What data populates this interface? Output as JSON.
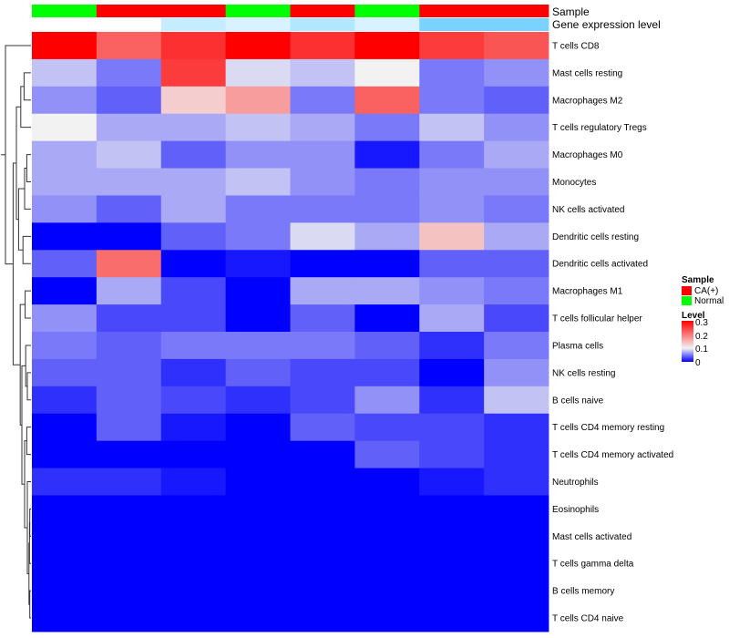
{
  "chart_data": {
    "type": "heatmap",
    "annotation_titles": [
      "Sample",
      "Gene expression level"
    ],
    "sample_groups": [
      "Normal",
      "CA(+)",
      "CA(+)",
      "Normal",
      "CA(+)",
      "Normal",
      "CA(+)",
      "CA(+)"
    ],
    "expression_level": [
      0.08,
      0.08,
      0.05,
      0.06,
      0.04,
      0.06,
      0.01,
      0.01
    ],
    "rows": [
      "T cells CD8",
      "Mast cells resting",
      "Macrophages M2",
      "T cells regulatory  Tregs",
      "Macrophages M0",
      "Monocytes",
      "NK cells activated",
      "Dendritic cells resting",
      "Dendritic cells activated",
      "Macrophages M1",
      "T cells follicular helper",
      "Plasma cells",
      "NK cells resting",
      "B cells naive",
      "T cells CD4 memory resting",
      "T cells CD4 memory activated",
      "Neutrophils",
      "Eosinophils",
      "Mast cells activated",
      "T cells gamma delta",
      "B cells memory",
      "T cells CD4 naive"
    ],
    "values": [
      [
        0.3,
        0.22,
        0.26,
        0.3,
        0.26,
        0.3,
        0.25,
        0.23
      ],
      [
        0.08,
        0.05,
        0.25,
        0.09,
        0.08,
        0.1,
        0.05,
        0.06
      ],
      [
        0.06,
        0.04,
        0.13,
        0.17,
        0.05,
        0.22,
        0.05,
        0.04
      ],
      [
        0.1,
        0.07,
        0.07,
        0.08,
        0.07,
        0.05,
        0.08,
        0.06
      ],
      [
        0.07,
        0.08,
        0.04,
        0.06,
        0.06,
        0.01,
        0.05,
        0.07
      ],
      [
        0.07,
        0.07,
        0.07,
        0.08,
        0.06,
        0.05,
        0.06,
        0.06
      ],
      [
        0.06,
        0.04,
        0.07,
        0.05,
        0.05,
        0.05,
        0.06,
        0.05
      ],
      [
        0.0,
        0.0,
        0.04,
        0.05,
        0.09,
        0.07,
        0.14,
        0.07
      ],
      [
        0.04,
        0.21,
        0.0,
        0.01,
        0.0,
        0.0,
        0.04,
        0.04
      ],
      [
        0.0,
        0.07,
        0.03,
        0.0,
        0.07,
        0.07,
        0.06,
        0.05
      ],
      [
        0.06,
        0.03,
        0.03,
        0.0,
        0.04,
        0.0,
        0.07,
        0.03
      ],
      [
        0.05,
        0.04,
        0.05,
        0.05,
        0.05,
        0.04,
        0.02,
        0.05
      ],
      [
        0.04,
        0.04,
        0.02,
        0.04,
        0.03,
        0.03,
        0.0,
        0.06
      ],
      [
        0.02,
        0.04,
        0.03,
        0.02,
        0.03,
        0.06,
        0.02,
        0.08
      ],
      [
        0.0,
        0.04,
        0.01,
        0.0,
        0.04,
        0.03,
        0.03,
        0.02
      ],
      [
        0.0,
        0.0,
        0.0,
        0.0,
        0.0,
        0.04,
        0.03,
        0.02
      ],
      [
        0.02,
        0.02,
        0.01,
        0.0,
        0.0,
        0.0,
        0.01,
        0.02
      ],
      [
        0,
        0,
        0,
        0,
        0,
        0,
        0,
        0
      ],
      [
        0,
        0,
        0,
        0,
        0,
        0,
        0,
        0
      ],
      [
        0,
        0,
        0,
        0,
        0,
        0,
        0,
        0
      ],
      [
        0,
        0,
        0,
        0,
        0,
        0,
        0,
        0
      ],
      [
        0,
        0,
        0,
        0,
        0,
        0,
        0,
        0
      ]
    ],
    "value_range": [
      0,
      0.3
    ],
    "color_scale": [
      "#0000ff",
      "#f2f2f2",
      "#ff0000"
    ],
    "legend_sample": {
      "title": "Sample",
      "items": [
        {
          "label": "CA(+)",
          "color": "#ff0000"
        },
        {
          "label": "Normal",
          "color": "#00ff00"
        }
      ]
    },
    "legend_level": {
      "title": "Level",
      "ticks": [
        "0.3",
        "0.2",
        "0.1",
        "0"
      ]
    },
    "expression_colors": [
      "#ffffff",
      "#66ccff"
    ],
    "row_dendrogram": true
  }
}
